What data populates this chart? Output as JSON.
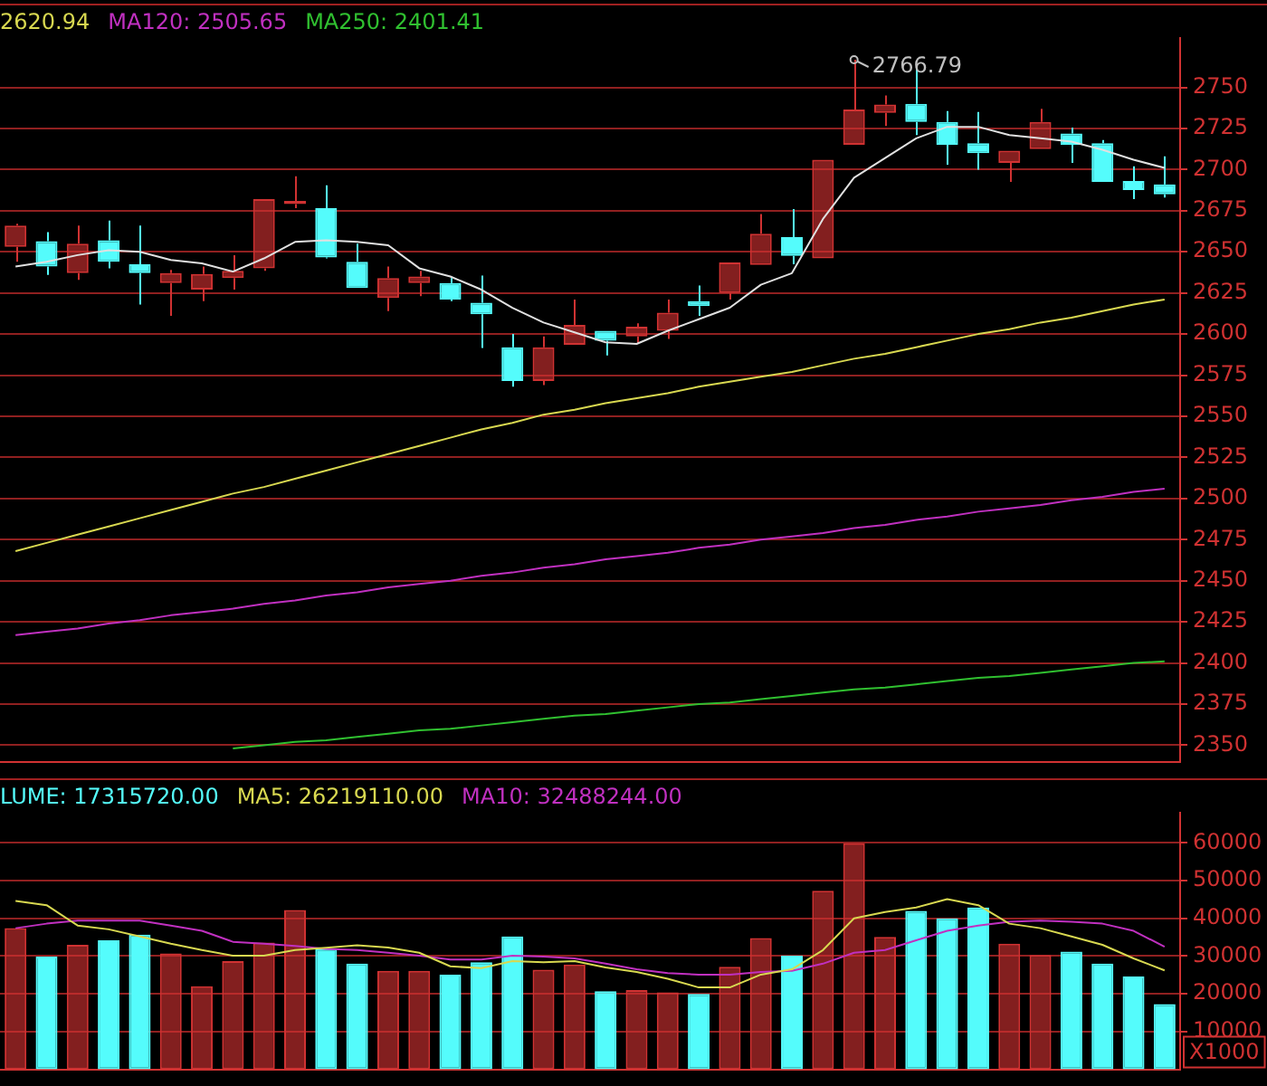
{
  "chart_data": [
    {
      "type": "candlestick",
      "categories": [
        null,
        null,
        null,
        null,
        null,
        null,
        null,
        null,
        null,
        null,
        null,
        null,
        null,
        null,
        null,
        null,
        null,
        null,
        null,
        null,
        null,
        null,
        null,
        null,
        null,
        null,
        null,
        null,
        null,
        null,
        null,
        null,
        null,
        null,
        null,
        null,
        null,
        null
      ],
      "ohlc": [
        [
          2653,
          2667,
          2644,
          2666
        ],
        [
          2656.5,
          2662,
          2636,
          2641
        ],
        [
          2637,
          2666,
          2633,
          2655
        ],
        [
          2657,
          2669,
          2640,
          2644
        ],
        [
          2642.5,
          2666,
          2618,
          2637
        ],
        [
          2631,
          2639,
          2611,
          2637
        ],
        [
          2627,
          2641,
          2620,
          2636.5
        ],
        [
          2634,
          2648,
          2627,
          2638.5
        ],
        [
          2640,
          2682,
          2638.5,
          2682
        ],
        [
          2679,
          2696,
          2676.5,
          2681
        ],
        [
          2676.5,
          2690.5,
          2646,
          2646.5
        ],
        [
          2644,
          2655,
          2628,
          2628
        ],
        [
          2622,
          2641,
          2614,
          2634
        ],
        [
          2631,
          2638.5,
          2623,
          2635
        ],
        [
          2631,
          2634,
          2620,
          2621
        ],
        [
          2619,
          2635.5,
          2591.5,
          2612
        ],
        [
          2592,
          2600,
          2568,
          2571.5
        ],
        [
          2571.5,
          2598.5,
          2569,
          2592
        ],
        [
          2593.5,
          2621,
          2593.5,
          2605.5
        ],
        [
          2602,
          2602,
          2587,
          2596
        ],
        [
          2598.5,
          2606.5,
          2594.5,
          2604.5
        ],
        [
          2602,
          2621,
          2597,
          2613
        ],
        [
          2620,
          2629.5,
          2611,
          2617
        ],
        [
          2625,
          2643.5,
          2621,
          2643.5
        ],
        [
          2642,
          2673,
          2642,
          2661
        ],
        [
          2659,
          2676,
          2642.5,
          2647.5
        ],
        [
          2646,
          2706,
          2646,
          2706
        ],
        [
          2715,
          2766.79,
          2715,
          2736.5
        ],
        [
          2734.5,
          2745,
          2726.5,
          2739.5
        ],
        [
          2740,
          2762,
          2721,
          2729
        ],
        [
          2729,
          2735.5,
          2703,
          2715
        ],
        [
          2716,
          2735,
          2700,
          2710
        ],
        [
          2704,
          2711.5,
          2692.5,
          2711.5
        ],
        [
          2712.5,
          2737,
          2712.5,
          2729
        ],
        [
          2722,
          2725.5,
          2704,
          2715
        ],
        [
          2716,
          2718,
          2692.5,
          2692.5
        ],
        [
          2693,
          2702,
          2682,
          2687.5
        ],
        [
          2691,
          2708,
          2683,
          2685
        ]
      ],
      "colors": [
        "#d03232",
        "#54fcfc",
        "#d03232",
        "#54fcfc",
        "#54fcfc",
        "#d03232",
        "#d03232",
        "#d03232",
        "#d03232",
        "#d03232",
        "#54fcfc",
        "#54fcfc",
        "#d03232",
        "#d03232",
        "#54fcfc",
        "#54fcfc",
        "#54fcfc",
        "#d03232",
        "#d03232",
        "#54fcfc",
        "#d03232",
        "#d03232",
        "#54fcfc",
        "#d03232",
        "#d03232",
        "#54fcfc",
        "#d03232",
        "#d03232",
        "#d03232",
        "#54fcfc",
        "#54fcfc",
        "#54fcfc",
        "#d03232",
        "#d03232",
        "#54fcfc",
        "#54fcfc",
        "#54fcfc",
        "#54fcfc"
      ],
      "series": [
        {
          "type": "line",
          "color": "#e0e0e0",
          "values": [
            2641,
            2644,
            2648,
            2651,
            2650,
            2645,
            2643,
            2638,
            2646,
            2656,
            2657,
            2656,
            2654,
            2640,
            2635,
            2627,
            2616,
            2607,
            2601,
            2595,
            2594,
            2602,
            2609,
            2616,
            2630,
            2637,
            2670,
            2695,
            2707,
            2719,
            2726,
            2726,
            2721,
            2719,
            2717,
            2712,
            2706,
            2701
          ]
        },
        {
          "type": "line",
          "name": "2620.94",
          "color": "#d8d850",
          "values": [
            2468,
            2473,
            2478,
            2483,
            2488,
            2493,
            2498,
            2503,
            2507,
            2512,
            2517,
            2522,
            2527,
            2532,
            2537,
            2542,
            2546,
            2551,
            2554,
            2558,
            2561,
            2564,
            2568,
            2571,
            2574,
            2577,
            2581,
            2585,
            2588,
            2592,
            2596,
            2600,
            2603,
            2607,
            2610,
            2614,
            2618,
            2621
          ]
        },
        {
          "type": "line",
          "name": "MA120: 2505.65",
          "color": "#c030c0",
          "values": [
            2417,
            2419,
            2421,
            2424,
            2426,
            2429,
            2431,
            2433,
            2436,
            2438,
            2441,
            2443,
            2446,
            2448,
            2450,
            2453,
            2455,
            2458,
            2460,
            2463,
            2465,
            2467,
            2470,
            2472,
            2475,
            2477,
            2479,
            2482,
            2484,
            2487,
            2489,
            2492,
            2494,
            2496,
            2499,
            2501,
            2504,
            2506
          ]
        },
        {
          "type": "line",
          "name": "MA250: 2401.41",
          "color": "#30c030",
          "values": [
            null,
            null,
            null,
            null,
            null,
            null,
            null,
            2348,
            2350,
            2352,
            2353,
            2355,
            2357,
            2359,
            2360,
            2362,
            2364,
            2366,
            2368,
            2369,
            2371,
            2373,
            2375,
            2376,
            2378,
            2380,
            2382,
            2384,
            2385,
            2387,
            2389,
            2391,
            2392,
            2394,
            2396,
            2398,
            2400,
            2401
          ]
        }
      ],
      "ylim": [
        2340,
        2780
      ],
      "yticks": [
        2350,
        2375,
        2400,
        2425,
        2450,
        2475,
        2500,
        2525,
        2550,
        2575,
        2600,
        2625,
        2650,
        2675,
        2700,
        2725,
        2750
      ],
      "grid": "y",
      "legend": "top left",
      "tick_labels": "y",
      "annotations": [
        {
          "text": "2766.79",
          "y": 2766.79
        }
      ]
    },
    {
      "type": "bar",
      "categories": [
        null,
        null,
        null,
        null,
        null,
        null,
        null,
        null,
        null,
        null,
        null,
        null,
        null,
        null,
        null,
        null,
        null,
        null,
        null,
        null,
        null,
        null,
        null,
        null,
        null,
        null,
        null,
        null,
        null,
        null,
        null,
        null,
        null,
        null,
        null,
        null,
        null,
        null
      ],
      "series": [
        {
          "type": "bar",
          "name": "LUME: 17315720.00",
          "colors": [
            "#d03232",
            "#54fcfc",
            "#d03232",
            "#54fcfc",
            "#54fcfc",
            "#d03232",
            "#d03232",
            "#d03232",
            "#d03232",
            "#d03232",
            "#54fcfc",
            "#54fcfc",
            "#d03232",
            "#d03232",
            "#54fcfc",
            "#54fcfc",
            "#54fcfc",
            "#d03232",
            "#d03232",
            "#54fcfc",
            "#d03232",
            "#d03232",
            "#54fcfc",
            "#d03232",
            "#d03232",
            "#54fcfc",
            "#d03232",
            "#d03232",
            "#d03232",
            "#54fcfc",
            "#54fcfc",
            "#54fcfc",
            "#d03232",
            "#d03232",
            "#54fcfc",
            "#54fcfc",
            "#54fcfc",
            "#54fcfc"
          ],
          "values": [
            37400,
            29900,
            33000,
            34200,
            35700,
            30700,
            22000,
            28700,
            33600,
            42200,
            32000,
            28000,
            26100,
            26100,
            25100,
            28400,
            35200,
            26400,
            27800,
            20700,
            21000,
            20400,
            20000,
            27200,
            34800,
            30100,
            47300,
            59900,
            35100,
            42000,
            40000,
            42900,
            33300,
            30300,
            31200,
            28000,
            24600,
            17316
          ]
        },
        {
          "type": "line",
          "name": "MA5: 26219110.00",
          "color": "#d8d850",
          "values": [
            44600,
            43500,
            38100,
            37100,
            35200,
            33300,
            31600,
            30100,
            30100,
            31600,
            32200,
            32900,
            32300,
            30900,
            27300,
            26800,
            28700,
            28400,
            28700,
            27000,
            25800,
            24000,
            21700,
            21700,
            25100,
            26500,
            31600,
            40000,
            41700,
            42900,
            45100,
            43500,
            38600,
            37400,
            35200,
            33000,
            29400,
            26219
          ]
        },
        {
          "type": "line",
          "name": "MA10: 32488244.00",
          "color": "#c030c0",
          "values": [
            37400,
            38600,
            39400,
            39400,
            39400,
            38100,
            36700,
            33800,
            33300,
            32700,
            31900,
            31600,
            30900,
            30100,
            29100,
            29100,
            30100,
            29900,
            29400,
            28000,
            26500,
            25500,
            25100,
            25100,
            25800,
            26100,
            28000,
            30900,
            31600,
            34200,
            36700,
            38100,
            39100,
            39400,
            39100,
            38600,
            36700,
            32488
          ]
        }
      ],
      "ylim": [
        0,
        68000
      ],
      "yticks": [
        10000,
        20000,
        30000,
        40000,
        50000,
        60000
      ],
      "grid": "y",
      "legend": "top left",
      "tick_labels": "y",
      "annotations": [
        "X1000"
      ]
    }
  ]
}
